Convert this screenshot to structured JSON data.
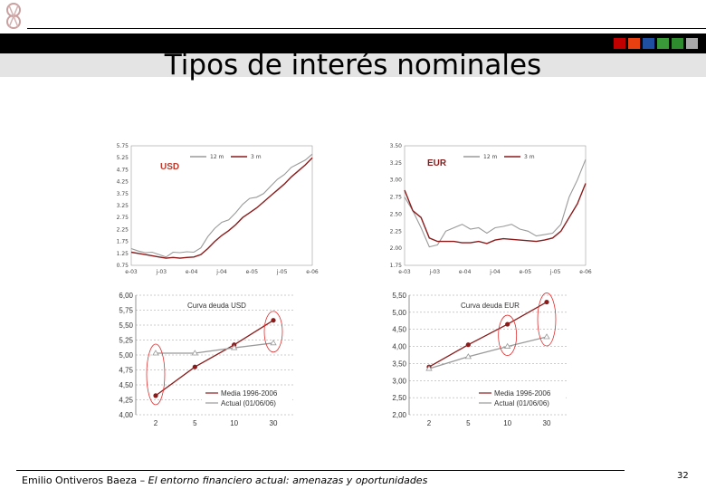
{
  "header": {
    "title": "Tipos de interés nominales",
    "accent_squares": [
      "#c00000",
      "#e84010",
      "#1f4fa0",
      "#3a9a3a",
      "#2e8b2e",
      "#a8a8a8"
    ]
  },
  "footer": {
    "author": "Emilio Ontiveros Baeza – ",
    "subtitle": "El entorno financiero actual: amenazas y oportunidades",
    "page": "32"
  },
  "chart_data": [
    {
      "type": "line",
      "title": "USD",
      "x_labels": [
        "e-03",
        "j-03",
        "e-04",
        "j-04",
        "e-05",
        "j-05",
        "e-06"
      ],
      "ylim": [
        0.75,
        5.75
      ],
      "y_ticks": [
        "5.75",
        "5.25",
        "4.75",
        "4.25",
        "3.75",
        "3.25",
        "2.75",
        "2.25",
        "1.75",
        "1.25",
        "0.75"
      ],
      "series": [
        {
          "name": "12 m",
          "color": "#9a9a9a",
          "values": [
            1.45,
            1.35,
            1.28,
            1.3,
            1.2,
            1.1,
            1.3,
            1.28,
            1.32,
            1.3,
            1.48,
            1.95,
            2.3,
            2.55,
            2.65,
            2.95,
            3.3,
            3.55,
            3.6,
            3.75,
            4.05,
            4.35,
            4.55,
            4.85,
            5.0,
            5.15,
            5.4
          ]
        },
        {
          "name": "3 m",
          "color": "#8b1a1a",
          "values": [
            1.3,
            1.25,
            1.2,
            1.15,
            1.1,
            1.05,
            1.08,
            1.05,
            1.08,
            1.1,
            1.2,
            1.45,
            1.75,
            2.0,
            2.2,
            2.45,
            2.75,
            2.95,
            3.15,
            3.4,
            3.65,
            3.9,
            4.15,
            4.45,
            4.7,
            4.95,
            5.25
          ]
        }
      ]
    },
    {
      "type": "line",
      "title": "EUR",
      "x_labels": [
        "e-03",
        "j-03",
        "e-04",
        "j-04",
        "e-05",
        "j-05",
        "e-06"
      ],
      "ylim": [
        1.75,
        3.5
      ],
      "y_ticks": [
        "3.50",
        "3.25",
        "3.00",
        "2.75",
        "2.50",
        "2.25",
        "2.00",
        "1.75"
      ],
      "series": [
        {
          "name": "12 m",
          "color": "#9a9a9a",
          "values": [
            2.75,
            2.55,
            2.3,
            2.02,
            2.05,
            2.25,
            2.3,
            2.35,
            2.28,
            2.3,
            2.22,
            2.3,
            2.32,
            2.35,
            2.28,
            2.25,
            2.18,
            2.2,
            2.22,
            2.35,
            2.75,
            3.0,
            3.3
          ]
        },
        {
          "name": "3 m",
          "color": "#8b1a1a",
          "values": [
            2.85,
            2.55,
            2.45,
            2.15,
            2.1,
            2.1,
            2.1,
            2.08,
            2.08,
            2.1,
            2.07,
            2.12,
            2.14,
            2.13,
            2.12,
            2.11,
            2.1,
            2.12,
            2.15,
            2.25,
            2.45,
            2.65,
            2.95
          ]
        }
      ]
    },
    {
      "type": "line",
      "title": "Curva deuda USD",
      "categories": [
        "2",
        "5",
        "10",
        "30"
      ],
      "ylim": [
        4.0,
        6.0
      ],
      "y_ticks": [
        "6,00",
        "5,75",
        "5,50",
        "5,25",
        "5,00",
        "4,75",
        "4,50",
        "4,25",
        "4,00"
      ],
      "series": [
        {
          "name": "Media 1996-2006",
          "color": "#8b1a1a",
          "marker": "circle",
          "values": [
            4.32,
            4.8,
            5.17,
            5.58
          ]
        },
        {
          "name": "Actual (01/06/06)",
          "color": "#9a9a9a",
          "marker": "triangle",
          "values": [
            5.03,
            5.03,
            5.12,
            5.2
          ]
        }
      ],
      "grid": true
    },
    {
      "type": "line",
      "title": "Curva deuda EUR",
      "categories": [
        "2",
        "5",
        "10",
        "30"
      ],
      "ylim": [
        2.0,
        5.5
      ],
      "y_ticks": [
        "5,50",
        "5,00",
        "4,50",
        "4,00",
        "3,50",
        "3,00",
        "2,50",
        "2,00"
      ],
      "series": [
        {
          "name": "Media 1996-2006",
          "color": "#8b1a1a",
          "marker": "circle",
          "values": [
            3.4,
            4.05,
            4.65,
            5.3
          ]
        },
        {
          "name": "Actual (01/06/06)",
          "color": "#9a9a9a",
          "marker": "triangle",
          "values": [
            3.35,
            3.7,
            4.0,
            4.28
          ]
        }
      ],
      "grid": true
    }
  ]
}
